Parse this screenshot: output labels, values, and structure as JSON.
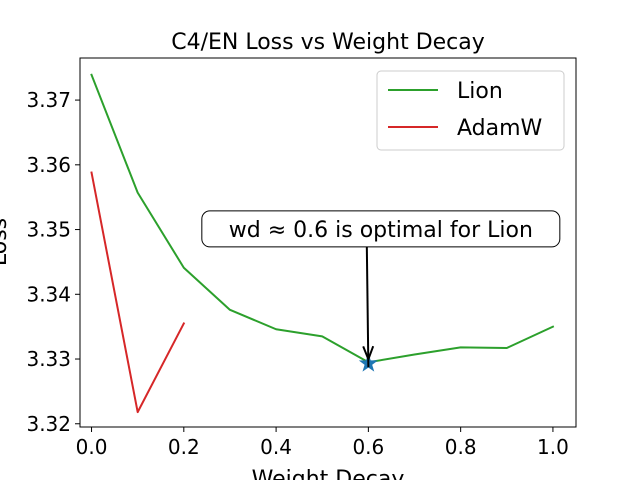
{
  "chart_data": {
    "type": "line",
    "title": "C4/EN Loss vs Weight Decay",
    "xlabel": "Weight Decay",
    "ylabel": "Loss",
    "xlim": [
      -0.025,
      1.05
    ],
    "ylim": [
      3.3195,
      3.3765
    ],
    "x_ticks": [
      0.0,
      0.2,
      0.4,
      0.6,
      0.8,
      1.0
    ],
    "x_tick_labels": [
      "0.0",
      "0.2",
      "0.4",
      "0.6",
      "0.8",
      "1.0"
    ],
    "y_ticks": [
      3.32,
      3.33,
      3.34,
      3.35,
      3.36,
      3.37
    ],
    "y_tick_labels": [
      "3.32",
      "3.33",
      "3.34",
      "3.35",
      "3.36",
      "3.37"
    ],
    "grid": false,
    "legend_position": "top-right",
    "series": [
      {
        "name": "Lion",
        "color": "#2ca02c",
        "x": [
          0.0,
          0.1,
          0.2,
          0.3,
          0.4,
          0.5,
          0.6,
          0.7,
          0.8,
          0.9,
          1.0
        ],
        "y": [
          3.3739,
          3.3557,
          3.3441,
          3.3376,
          3.3346,
          3.3335,
          3.3295,
          3.3307,
          3.3318,
          3.3317,
          3.335
        ]
      },
      {
        "name": "AdamW",
        "color": "#d62728",
        "x": [
          0.0,
          0.1,
          0.2
        ],
        "y": [
          3.3588,
          3.3218,
          3.3355
        ]
      }
    ],
    "marker": {
      "x": 0.6,
      "y": 3.3293,
      "shape": "star",
      "color": "#1f77b4"
    },
    "annotation": {
      "text": "wd ≈ 0.6 is optimal for Lion",
      "target_x": 0.6,
      "target_y": 3.3295,
      "text_x": 0.627,
      "text_y": 3.3501
    }
  }
}
